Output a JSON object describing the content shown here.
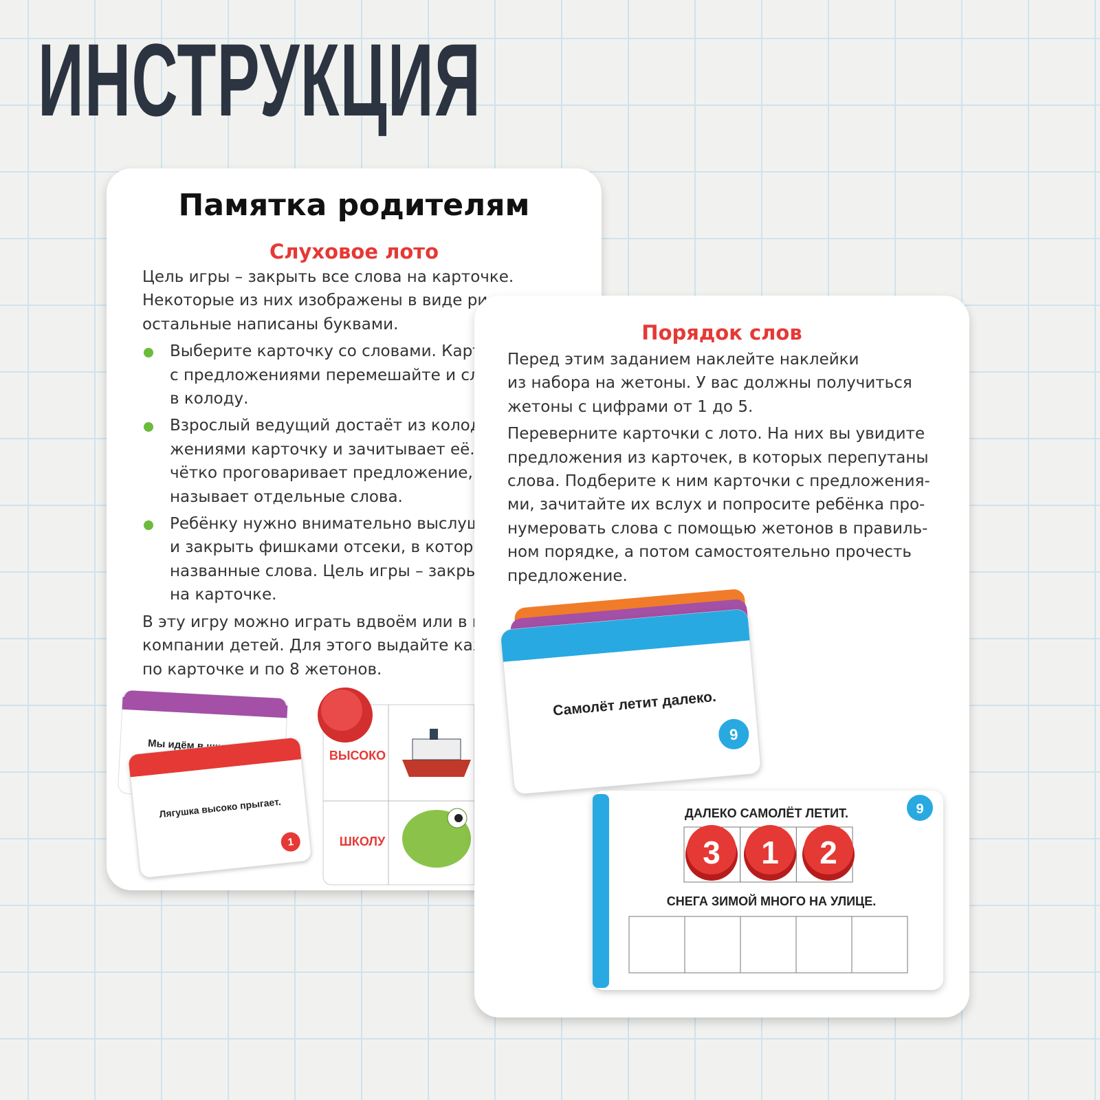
{
  "title": "ИНСТРУКЦИЯ",
  "left_card": {
    "heading": "Памятка родителям",
    "subheading": "Слуховое лото",
    "intro": [
      "Цель игры – закрыть все слова на карточке.",
      "Некоторые из них изображены в виде ри",
      "остальные написаны буквами."
    ],
    "bullets": [
      [
        "Выберите карточку со словами. Карто",
        "с предложениями перемешайте и сл",
        "в колоду."
      ],
      [
        "Взрослый ведущий достаёт из колоды",
        "жениями карточку и зачитывает её. С",
        "чётко проговаривает предложение, з",
        "называет отдельные слова."
      ],
      [
        "Ребёнку нужно внимательно выслуш",
        "и закрыть фишками отсеки, в которых",
        "названные слова. Цель игры – закрыт",
        "на карточке."
      ]
    ],
    "outro": [
      "В эту игру можно играть вдвоём или в не",
      "компании детей. Для этого выдайте каж",
      "по карточке и по 8 жетонов."
    ],
    "illustration": {
      "back_card_text": "Мы идём в шко",
      "front_card_text": "Лягушка высоко прыгает.",
      "front_card_number": "1",
      "lotto_words": [
        "ВЫСОКО",
        "ШКОЛУ"
      ]
    }
  },
  "right_card": {
    "heading": "Порядок слов",
    "paragraphs": [
      [
        "Перед этим заданием наклейте наклейки",
        "из набора на жетоны. У вас должны получиться",
        "жетоны с цифрами от 1 до 5."
      ],
      [
        "Переверните карточки с лото. На них вы увидите",
        "предложения из карточек, в которых перепутаны",
        "слова. Подберите к ним карточки с предложения-",
        "ми, зачитайте их вслух и попросите ребёнка про-",
        "нумеровать слова с помощью жетонов в правиль-",
        "ном порядке, а потом самостоятельно прочесть",
        "предложение."
      ]
    ],
    "illustration": {
      "card_text": "Самолёт летит далеко.",
      "card_number": "9",
      "task_card": {
        "number": "9",
        "sentence_1": "ДАЛЕКО САМОЛЁТ ЛЕТИТ.",
        "tokens": [
          "3",
          "1",
          "2"
        ],
        "sentence_2": "СНЕГА ЗИМОЙ МНОГО НА УЛИЦЕ."
      }
    }
  }
}
